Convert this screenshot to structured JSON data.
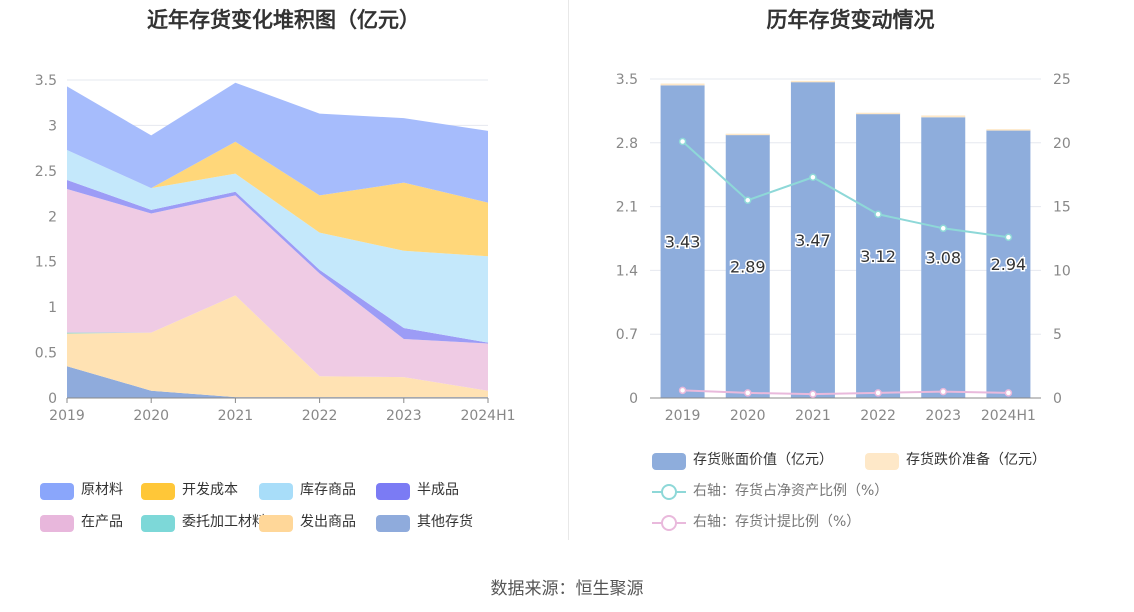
{
  "left_chart": {
    "title": "近年存货变化堆积图（亿元）",
    "legend": [
      {
        "name": "原材料",
        "color": "#8aa6fb"
      },
      {
        "name": "开发成本",
        "color": "#ffc738"
      },
      {
        "name": "库存商品",
        "color": "#a8ddf9"
      },
      {
        "name": "半成品",
        "color": "#7b7bf4"
      },
      {
        "name": "在产品",
        "color": "#e8b7dc"
      },
      {
        "name": "委托加工材料",
        "color": "#7dd8d8"
      },
      {
        "name": "发出商品",
        "color": "#ffd799"
      },
      {
        "name": "其他存货",
        "color": "#8fabdc"
      }
    ]
  },
  "right_chart": {
    "title": "历年存货变动情况",
    "legend": [
      {
        "name": "存货账面价值（亿元）",
        "color": "#8eaddc",
        "kind": "bar"
      },
      {
        "name": "存货跌价准备（亿元）",
        "color": "#fee8c8",
        "kind": "bar"
      },
      {
        "name": "右轴：存货占净资产比例（%）",
        "color": "#8ed8d8",
        "kind": "line"
      },
      {
        "name": "右轴：存货计提比例（%）",
        "color": "#e9b9dc",
        "kind": "line"
      }
    ]
  },
  "source": "数据来源：恒生聚源",
  "chart_data": [
    {
      "type": "area",
      "title": "近年存货变化堆积图（亿元）",
      "stacked": true,
      "categories": [
        "2019",
        "2020",
        "2021",
        "2022",
        "2023",
        "2024H1"
      ],
      "ylim": [
        0,
        3.5
      ],
      "yticks": [
        "0",
        "0.5",
        "1",
        "1.5",
        "2",
        "2.5",
        "3",
        "3.5"
      ],
      "grid": true,
      "legend_position": "bottom",
      "series": [
        {
          "name": "其他存货",
          "color": "#8fabdc",
          "values": [
            0.35,
            0.08,
            0.01,
            0.01,
            0.01,
            0.01
          ]
        },
        {
          "name": "发出商品",
          "color": "#ffe2b3",
          "values": [
            0.36,
            0.64,
            1.12,
            0.23,
            0.22,
            0.07
          ]
        },
        {
          "name": "委托加工材料",
          "color": "#7dd8d8",
          "values": [
            0.01,
            0.0,
            0.0,
            0.0,
            0.0,
            0.0
          ]
        },
        {
          "name": "在产品",
          "color": "#efcbe4",
          "values": [
            1.58,
            1.31,
            1.1,
            1.13,
            0.42,
            0.52
          ]
        },
        {
          "name": "半成品",
          "color": "#9c9cf6",
          "values": [
            0.1,
            0.04,
            0.04,
            0.04,
            0.12,
            0.01
          ]
        },
        {
          "name": "库存商品",
          "color": "#c4e8fb",
          "values": [
            0.33,
            0.24,
            0.2,
            0.41,
            0.85,
            0.95
          ]
        },
        {
          "name": "开发成本",
          "color": "#ffd77a",
          "values": [
            0.0,
            0.0,
            0.35,
            0.41,
            0.75,
            0.59
          ]
        },
        {
          "name": "原材料",
          "color": "#a6bcfc",
          "values": [
            0.7,
            0.58,
            0.65,
            0.9,
            0.71,
            0.79
          ]
        }
      ]
    },
    {
      "type": "bar",
      "title": "历年存货变动情况",
      "stacked": true,
      "categories": [
        "2019",
        "2020",
        "2021",
        "2022",
        "2023",
        "2024H1"
      ],
      "ylim": [
        0,
        3.5
      ],
      "yticks": [
        "0",
        "0.7",
        "1.4",
        "2.1",
        "2.8",
        "3.5"
      ],
      "y2lim": [
        0,
        25
      ],
      "y2ticks": [
        "0",
        "5",
        "10",
        "15",
        "20",
        "25"
      ],
      "grid": true,
      "legend_position": "bottom",
      "series": [
        {
          "name": "存货账面价值（亿元）",
          "color": "#8eaddc",
          "axis": "left",
          "values": [
            3.43,
            2.89,
            3.47,
            3.12,
            3.08,
            2.94
          ],
          "labels": [
            "3.43",
            "2.89",
            "3.47",
            "3.12",
            "3.08",
            "2.94"
          ]
        },
        {
          "name": "存货跌价准备（亿元）",
          "color": "#fee8c8",
          "axis": "left",
          "values": [
            0.02,
            0.01,
            0.01,
            0.01,
            0.02,
            0.01
          ]
        },
        {
          "name": "右轴：存货占净资产比例（%）",
          "color": "#8ed8d8",
          "axis": "right",
          "kind": "line",
          "values": [
            20.1,
            15.5,
            17.3,
            14.4,
            13.3,
            12.6
          ]
        },
        {
          "name": "右轴：存货计提比例（%）",
          "color": "#e9b9dc",
          "axis": "right",
          "kind": "line",
          "values": [
            0.6,
            0.4,
            0.3,
            0.4,
            0.5,
            0.4
          ]
        }
      ]
    }
  ]
}
